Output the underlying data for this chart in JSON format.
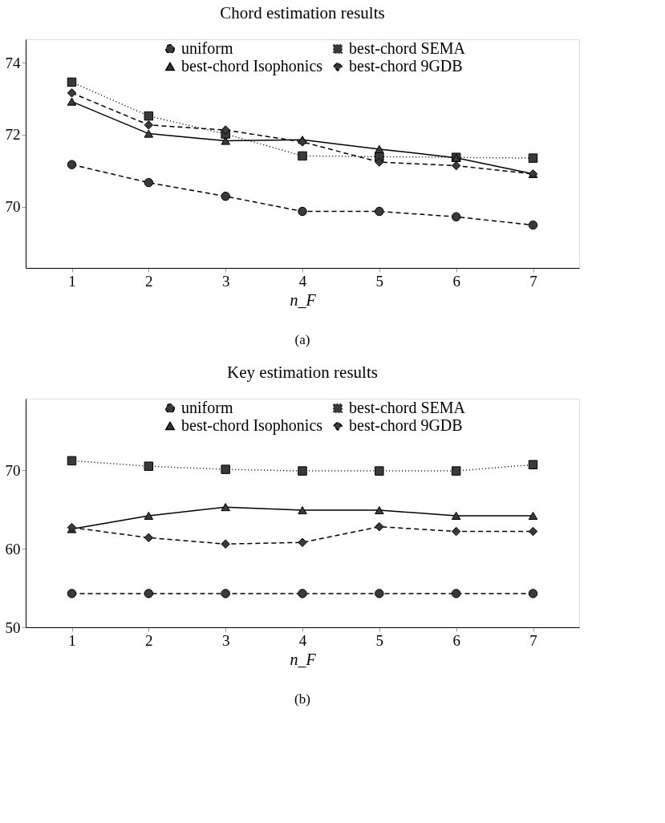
{
  "chart_data": [
    {
      "type": "line",
      "title": "Chord estimation results",
      "xlabel": "n_F",
      "annotations": [
        "(a)"
      ],
      "x": [
        1,
        2,
        3,
        4,
        5,
        6,
        7
      ],
      "xlim": [
        0.4,
        7.6
      ],
      "xticks": [
        1,
        2,
        3,
        4,
        5,
        6,
        7
      ],
      "ylim": [
        68.3,
        74.65
      ],
      "yticks": [
        70,
        72,
        74
      ],
      "grid": false,
      "legend": "top",
      "series": [
        {
          "name": "uniform",
          "color": "#3a3a3a",
          "marker": "circle",
          "line_style": "dashed",
          "values": [
            71.17,
            70.67,
            70.29,
            69.87,
            69.87,
            69.72,
            69.49
          ]
        },
        {
          "name": "best-chord SEMA",
          "color": "#3a3a3a",
          "marker": "square",
          "line_style": "dotted",
          "values": [
            73.46,
            72.52,
            72.02,
            71.41,
            71.39,
            71.37,
            71.35
          ]
        },
        {
          "name": "best-chord Isophonics",
          "color": "#3a3a3a",
          "marker": "triangle",
          "line_style": "solid",
          "values": [
            72.92,
            72.03,
            71.83,
            71.86,
            71.6,
            71.36,
            70.91
          ]
        },
        {
          "name": "best-chord 9GDB",
          "color": "#3a3a3a",
          "marker": "diamond",
          "line_style": "dashed",
          "values": [
            73.16,
            72.27,
            72.13,
            71.8,
            71.24,
            71.14,
            70.91
          ]
        }
      ]
    },
    {
      "type": "line",
      "title": "Key estimation results",
      "xlabel": "n_F",
      "annotations": [
        "(b)"
      ],
      "x": [
        1,
        2,
        3,
        4,
        5,
        6,
        7
      ],
      "xlim": [
        0.4,
        7.6
      ],
      "xticks": [
        1,
        2,
        3,
        4,
        5,
        6,
        7
      ],
      "ylim": [
        50,
        79.1
      ],
      "yticks": [
        50,
        60,
        70
      ],
      "grid": false,
      "legend": "top",
      "series": [
        {
          "name": "uniform",
          "color": "#3a3a3a",
          "marker": "circle",
          "line_style": "dashed",
          "values": [
            54.3,
            54.3,
            54.3,
            54.3,
            54.3,
            54.3,
            54.3
          ]
        },
        {
          "name": "best-chord SEMA",
          "color": "#3a3a3a",
          "marker": "square",
          "line_style": "dotted",
          "values": [
            71.2,
            70.5,
            70.1,
            69.9,
            69.9,
            69.9,
            70.7
          ]
        },
        {
          "name": "best-chord Isophonics",
          "color": "#3a3a3a",
          "marker": "triangle",
          "line_style": "solid",
          "values": [
            62.5,
            64.2,
            65.3,
            64.9,
            64.9,
            64.2,
            64.2
          ]
        },
        {
          "name": "best-chord 9GDB",
          "color": "#3a3a3a",
          "marker": "diamond",
          "line_style": "dashed",
          "values": [
            62.7,
            61.4,
            60.6,
            60.8,
            62.8,
            62.2,
            62.2
          ]
        }
      ]
    }
  ]
}
